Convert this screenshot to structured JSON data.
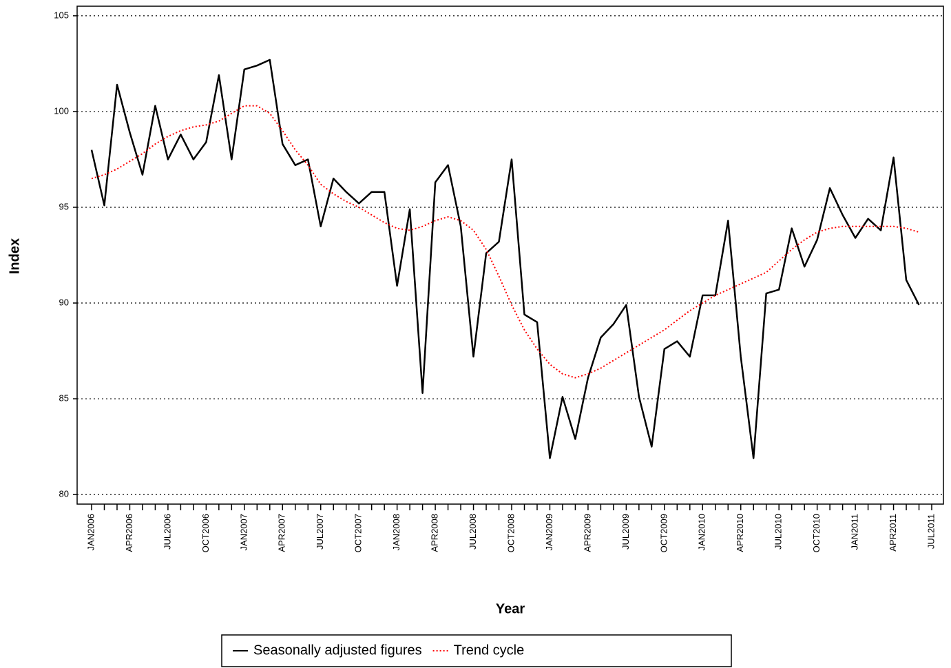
{
  "chart_data": {
    "type": "line",
    "x_label": "Year",
    "y_label": "Index",
    "categories": [
      "JAN2006",
      null,
      null,
      "APR2006",
      null,
      null,
      "JUL2006",
      null,
      null,
      "OCT2006",
      null,
      null,
      "JAN2007",
      null,
      null,
      "APR2007",
      null,
      null,
      "JUL2007",
      null,
      null,
      "OCT2007",
      null,
      null,
      "JAN2008",
      null,
      null,
      "APR2008",
      null,
      null,
      "JUL2008",
      null,
      null,
      "OCT2008",
      null,
      null,
      "JAN2009",
      null,
      null,
      "APR2009",
      null,
      null,
      "JUL2009",
      null,
      null,
      "OCT2009",
      null,
      null,
      "JAN2010",
      null,
      null,
      "APR2010",
      null,
      null,
      "JUL2010",
      null,
      null,
      "OCT2010",
      null,
      null,
      "JAN2011",
      null,
      null,
      "APR2011",
      null,
      null,
      "JUL2011"
    ],
    "series": [
      {
        "name": "Seasonally adjusted figures",
        "color": "#000000",
        "style": "solid",
        "values": [
          98.0,
          95.1,
          101.4,
          98.9,
          96.7,
          100.3,
          97.5,
          98.8,
          97.5,
          98.4,
          101.9,
          97.5,
          102.2,
          102.4,
          102.7,
          98.3,
          97.2,
          97.5,
          94.0,
          96.5,
          95.8,
          95.2,
          95.8,
          95.8,
          90.9,
          94.9,
          85.3,
          96.3,
          97.2,
          94.0,
          87.2,
          92.6,
          93.2,
          97.5,
          89.4,
          89.0,
          81.9,
          85.1,
          82.9,
          86.1,
          88.2,
          88.9,
          89.9,
          85.1,
          82.5,
          87.6,
          88.0,
          87.2,
          90.4,
          90.4,
          94.3,
          87.2,
          81.9,
          90.5,
          90.7,
          93.9,
          91.9,
          93.3,
          96.0,
          94.6,
          93.4,
          94.4,
          93.8,
          97.6,
          91.2,
          89.9,
          null
        ]
      },
      {
        "name": "Trend cycle",
        "color": "#ff0000",
        "style": "dotted",
        "values": [
          96.5,
          96.7,
          97.0,
          97.4,
          97.8,
          98.3,
          98.7,
          99.0,
          99.2,
          99.3,
          99.5,
          99.9,
          100.3,
          100.3,
          99.9,
          99.0,
          98.0,
          97.2,
          96.2,
          95.7,
          95.3,
          95.0,
          94.6,
          94.2,
          93.9,
          93.8,
          94.0,
          94.3,
          94.5,
          94.3,
          93.8,
          92.8,
          91.4,
          89.9,
          88.6,
          87.6,
          86.8,
          86.3,
          86.1,
          86.3,
          86.6,
          87.0,
          87.4,
          87.8,
          88.2,
          88.6,
          89.1,
          89.6,
          90.0,
          90.4,
          90.7,
          91.0,
          91.3,
          91.6,
          92.2,
          92.8,
          93.3,
          93.7,
          93.9,
          94.0,
          94.0,
          94.0,
          94.0,
          94.0,
          93.9,
          93.7,
          null
        ]
      }
    ],
    "ylim": [
      79.5,
      105.5
    ],
    "yticks": [
      80,
      85,
      90,
      95,
      100,
      105
    ],
    "grid": true,
    "legend": "bottom"
  }
}
